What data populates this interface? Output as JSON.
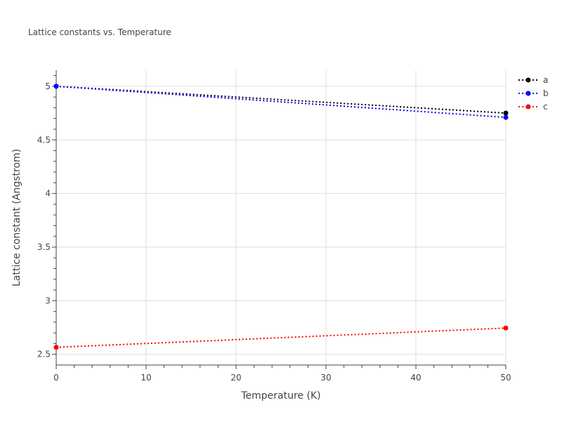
{
  "chart_data": {
    "type": "line",
    "title": "Lattice constants vs. Temperature",
    "xlabel": "Temperature (K)",
    "ylabel": "Lattice constant (Angstrom)",
    "xlim": [
      0,
      50
    ],
    "ylim": [
      2.4,
      5.15
    ],
    "x_ticks": [
      0,
      10,
      20,
      30,
      40,
      50
    ],
    "y_ticks": [
      2.5,
      3,
      3.5,
      4,
      4.5,
      5
    ],
    "x_tick_labels": [
      "0",
      "10",
      "20",
      "30",
      "40",
      "50"
    ],
    "y_tick_labels": [
      "2.5",
      "3",
      "3.5",
      "4",
      "4.5",
      "5"
    ],
    "grid": true,
    "legend_position": "top-right",
    "x": [
      0,
      50
    ],
    "series": [
      {
        "name": "a",
        "color": "#000000",
        "values": [
          5.0,
          4.75
        ],
        "style": "dotted",
        "marker": "circle"
      },
      {
        "name": "b",
        "color": "#0000ff",
        "values": [
          5.0,
          4.71
        ],
        "style": "dotted",
        "marker": "circle"
      },
      {
        "name": "c",
        "color": "#ff0000",
        "values": [
          2.565,
          2.745
        ],
        "style": "dotted",
        "marker": "circle"
      }
    ]
  }
}
